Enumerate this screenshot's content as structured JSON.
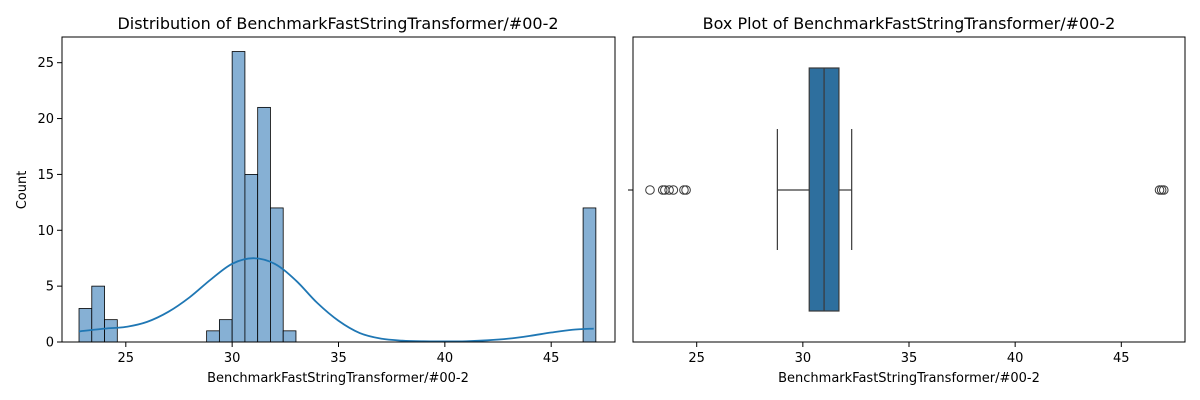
{
  "chart_data": [
    {
      "type": "histogram",
      "title": "Distribution of BenchmarkFastStringTransformer/#00-2",
      "xlabel": "BenchmarkFastStringTransformer/#00-2",
      "ylabel": "Count",
      "xlim": [
        22.0,
        48.0
      ],
      "ylim": [
        0,
        27.3
      ],
      "xticks": [
        25,
        30,
        35,
        40,
        45
      ],
      "yticks": [
        0,
        5,
        10,
        15,
        20,
        25
      ],
      "bins": [
        {
          "x0": 22.8,
          "x1": 23.4,
          "count": 3
        },
        {
          "x0": 23.4,
          "x1": 24.0,
          "count": 5
        },
        {
          "x0": 24.0,
          "x1": 24.6,
          "count": 2
        },
        {
          "x0": 28.8,
          "x1": 29.4,
          "count": 1
        },
        {
          "x0": 29.4,
          "x1": 30.0,
          "count": 2
        },
        {
          "x0": 30.0,
          "x1": 30.6,
          "count": 26
        },
        {
          "x0": 30.6,
          "x1": 31.2,
          "count": 15
        },
        {
          "x0": 31.2,
          "x1": 31.8,
          "count": 21
        },
        {
          "x0": 31.8,
          "x1": 32.4,
          "count": 12
        },
        {
          "x0": 32.4,
          "x1": 33.0,
          "count": 1
        },
        {
          "x0": 46.5,
          "x1": 47.1,
          "count": 12
        }
      ],
      "kde": {
        "x": [
          22.8,
          24.0,
          25.0,
          26.0,
          27.0,
          28.0,
          29.0,
          30.0,
          31.0,
          32.0,
          33.0,
          34.0,
          35.0,
          36.0,
          37.0,
          38.0,
          39.0,
          40.0,
          41.0,
          42.0,
          43.0,
          44.0,
          45.0,
          46.0,
          47.0
        ],
        "y": [
          0.95,
          1.2,
          1.35,
          1.8,
          2.7,
          4.0,
          5.6,
          7.0,
          7.5,
          7.0,
          5.5,
          3.5,
          1.9,
          0.8,
          0.3,
          0.12,
          0.06,
          0.05,
          0.07,
          0.15,
          0.3,
          0.55,
          0.85,
          1.1,
          1.2
        ]
      },
      "bar_color": "#86b0d4",
      "bar_edge_color": "#000000",
      "kde_color": "#1f77b4"
    },
    {
      "type": "box",
      "title": "Box Plot of BenchmarkFastStringTransformer/#00-2",
      "xlabel": "BenchmarkFastStringTransformer/#00-2",
      "xlim": [
        22.0,
        48.0
      ],
      "xticks": [
        25,
        30,
        35,
        40,
        45
      ],
      "whisker_low": 28.8,
      "q1": 30.3,
      "median": 31.0,
      "q3": 31.7,
      "whisker_high": 32.3,
      "outliers": [
        22.8,
        23.4,
        23.5,
        23.7,
        23.9,
        24.4,
        24.5,
        46.8,
        46.9,
        47.0
      ],
      "box_color": "#2e6f9e",
      "line_color": "#3a3a3a"
    }
  ]
}
